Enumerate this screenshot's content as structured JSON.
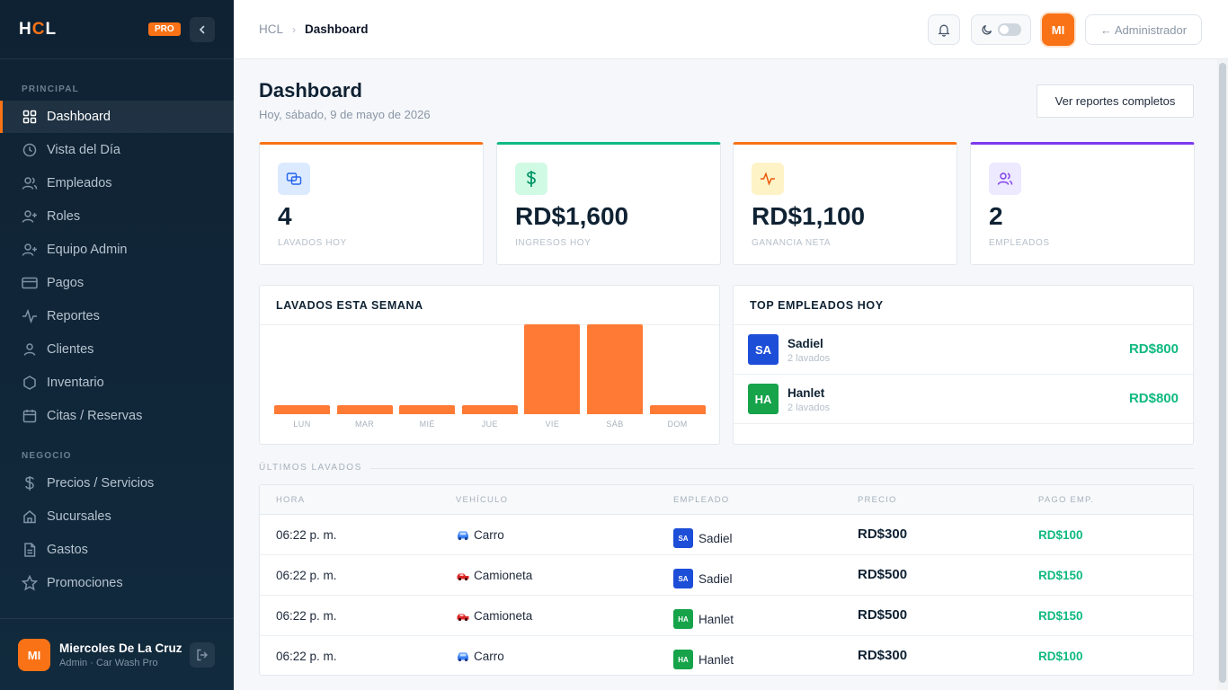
{
  "brand": {
    "logo_h": "H",
    "logo_c": "C",
    "logo_l": "L",
    "badge": "PRO"
  },
  "sidebar": {
    "section_principal": "PRINCIPAL",
    "section_negocio": "NEGOCIO",
    "items": [
      {
        "label": "Dashboard",
        "icon": "grid-icon"
      },
      {
        "label": "Vista del Día",
        "icon": "clock-icon"
      },
      {
        "label": "Empleados",
        "icon": "users-icon"
      },
      {
        "label": "Roles",
        "icon": "user-plus-icon"
      },
      {
        "label": "Equipo Admin",
        "icon": "user-group-icon"
      },
      {
        "label": "Pagos",
        "icon": "credit-card-icon"
      },
      {
        "label": "Reportes",
        "icon": "activity-icon"
      },
      {
        "label": "Clientes",
        "icon": "user-icon"
      },
      {
        "label": "Inventario",
        "icon": "hexagon-icon"
      },
      {
        "label": "Citas / Reservas",
        "icon": "calendar-icon"
      }
    ],
    "items2": [
      {
        "label": "Precios / Servicios",
        "icon": "dollar-icon"
      },
      {
        "label": "Sucursales",
        "icon": "home-icon"
      },
      {
        "label": "Gastos",
        "icon": "file-icon"
      },
      {
        "label": "Promociones",
        "icon": "star-icon"
      }
    ],
    "user": {
      "initials": "MI",
      "name": "Miercoles De La Cruz",
      "role": "Admin · Car Wash Pro"
    }
  },
  "topbar": {
    "breadcrumb_root": "HCL",
    "breadcrumb_sep": "›",
    "breadcrumb_current": "Dashboard",
    "avatar": "MI",
    "admin_label": "← Administrador"
  },
  "page": {
    "title": "Dashboard",
    "subtitle": "Hoy, sábado, 9 de mayo de 2026",
    "reports_button": "Ver reportes completos"
  },
  "stats": [
    {
      "value": "4",
      "label": "LAVADOS HOY",
      "color": "#f97316"
    },
    {
      "value": "RD$1,600",
      "label": "INGRESOS HOY",
      "color": "#10b981"
    },
    {
      "value": "RD$1,100",
      "label": "GANANCIA NETA",
      "color": "#f97316"
    },
    {
      "value": "2",
      "label": "EMPLEADOS",
      "color": "#7c3aed"
    }
  ],
  "weekly": {
    "title": "LAVADOS ESTA SEMANA",
    "chart_data": {
      "type": "bar",
      "title": "LAVADOS ESTA SEMANA",
      "categories": [
        "LUN",
        "MAR",
        "MIÉ",
        "JUE",
        "VIE",
        "SÁB",
        "DOM"
      ],
      "values": [
        0,
        0,
        0,
        0,
        4,
        4,
        0
      ],
      "ylim": [
        0,
        4
      ],
      "grid": false
    }
  },
  "top_employees": {
    "title": "TOP EMPLEADOS HOY",
    "rows": [
      {
        "initials": "SA",
        "name": "Sadiel",
        "sub": "2 lavados",
        "amount": "RD$800",
        "color": "#1d4ed8"
      },
      {
        "initials": "HA",
        "name": "Hanlet",
        "sub": "2 lavados",
        "amount": "RD$800",
        "color": "#16a34a"
      }
    ]
  },
  "recent": {
    "section": "ÚLTIMOS LAVADOS",
    "headers": [
      "HORA",
      "VEHÍCULO",
      "EMPLEADO",
      "PRECIO",
      "PAGO EMP."
    ],
    "rows": [
      {
        "time": "06:22 p. m.",
        "vehicle": "Carro",
        "vehicle_icon": "car-blue-icon",
        "emp_initials": "SA",
        "emp": "Sadiel",
        "emp_color": "#1d4ed8",
        "price": "RD$300",
        "pay": "RD$100"
      },
      {
        "time": "06:22 p. m.",
        "vehicle": "Camioneta",
        "vehicle_icon": "truck-red-icon",
        "emp_initials": "SA",
        "emp": "Sadiel",
        "emp_color": "#1d4ed8",
        "price": "RD$500",
        "pay": "RD$150"
      },
      {
        "time": "06:22 p. m.",
        "vehicle": "Camioneta",
        "vehicle_icon": "truck-red-icon",
        "emp_initials": "HA",
        "emp": "Hanlet",
        "emp_color": "#16a34a",
        "price": "RD$500",
        "pay": "RD$150"
      },
      {
        "time": "06:22 p. m.",
        "vehicle": "Carro",
        "vehicle_icon": "car-blue-icon",
        "emp_initials": "HA",
        "emp": "Hanlet",
        "emp_color": "#16a34a",
        "price": "RD$300",
        "pay": "RD$100"
      }
    ]
  }
}
